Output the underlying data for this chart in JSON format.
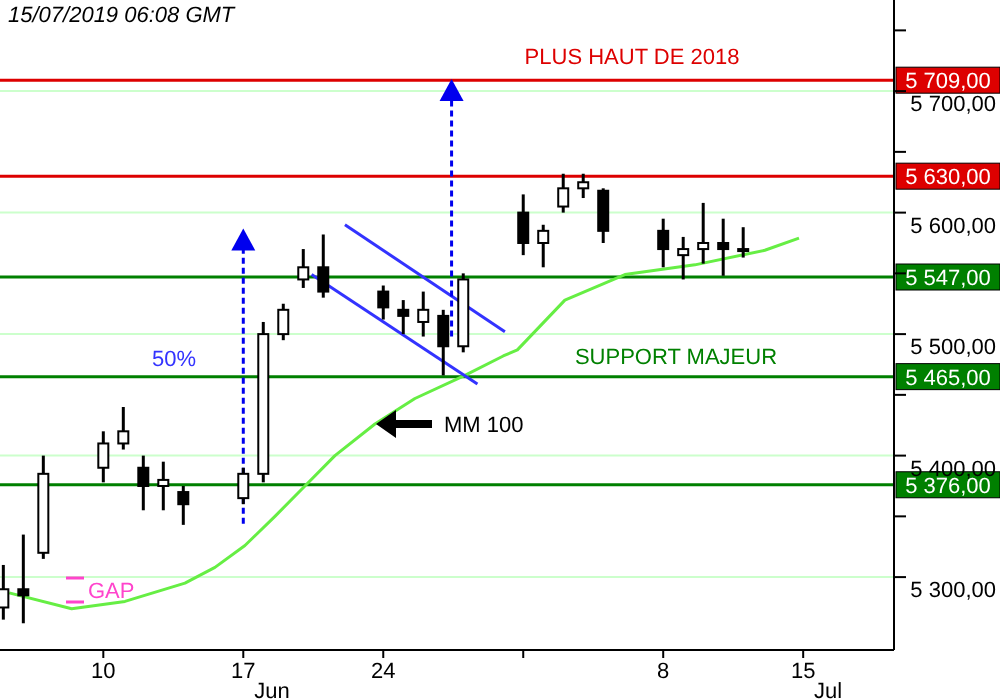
{
  "chart_data": {
    "type": "candlestick",
    "color": "#000000",
    "x": [
      "2019-06-05",
      "2019-06-06",
      "2019-06-07",
      "2019-06-10",
      "2019-06-11",
      "2019-06-12",
      "2019-06-13",
      "2019-06-14",
      "2019-06-17",
      "2019-06-18",
      "2019-06-19",
      "2019-06-20",
      "2019-06-21",
      "2019-06-24",
      "2019-06-25",
      "2019-06-26",
      "2019-06-27",
      "2019-06-28",
      "2019-07-01",
      "2019-07-02",
      "2019-07-03",
      "2019-07-04",
      "2019-07-05",
      "2019-07-08",
      "2019-07-09",
      "2019-07-10",
      "2019-07-11",
      "2019-07-12"
    ],
    "ohlc": [
      [
        5275,
        5310,
        5265,
        5290
      ],
      [
        5290,
        5335,
        5262,
        5285
      ],
      [
        5320,
        5400,
        5315,
        5385
      ],
      [
        5390,
        5420,
        5378,
        5410
      ],
      [
        5410,
        5440,
        5405,
        5420
      ],
      [
        5390,
        5400,
        5355,
        5375
      ],
      [
        5375,
        5395,
        5355,
        5380
      ],
      [
        5370,
        5375,
        5343,
        5360
      ],
      [
        5365,
        5390,
        5360,
        5385
      ],
      [
        5385,
        5510,
        5378,
        5500
      ],
      [
        5500,
        5525,
        5495,
        5520
      ],
      [
        5545,
        5570,
        5538,
        5555
      ],
      [
        5555,
        5582,
        5530,
        5535
      ],
      [
        5535,
        5540,
        5512,
        5522
      ],
      [
        5520,
        5528,
        5500,
        5515
      ],
      [
        5510,
        5535,
        5498,
        5520
      ],
      [
        5515,
        5520,
        5466,
        5490
      ],
      [
        5490,
        5550,
        5485,
        5545
      ],
      [
        5600,
        5615,
        5565,
        5575
      ],
      [
        5575,
        5590,
        5555,
        5585
      ],
      [
        5605,
        5632,
        5600,
        5620
      ],
      [
        5620,
        5632,
        5612,
        5625
      ],
      [
        5618,
        5620,
        5575,
        5585
      ],
      [
        5585,
        5595,
        5555,
        5570
      ],
      [
        5565,
        5580,
        5545,
        5570
      ],
      [
        5570,
        5608,
        5558,
        5575
      ],
      [
        5575,
        5595,
        5548,
        5570
      ],
      [
        5570,
        5588,
        5563,
        5570
      ]
    ],
    "series": [
      {
        "type": "line",
        "color": "#66ee44",
        "x": [
          "2019-06-05T07:00",
          "2019-06-08T10:00",
          "2019-06-11T02:00",
          "2019-06-14T02:00",
          "2019-06-15T14:00",
          "2019-06-17T02:00",
          "2019-06-18T14:00",
          "2019-06-20T02:00",
          "2019-06-21T14:00",
          "2019-06-23T14:00",
          "2019-06-25T14:00",
          "2019-06-28T02:00",
          "2019-06-30T00:00",
          "2019-06-30T17:00",
          "2019-07-03T02:00",
          "2019-07-06T02:00",
          "2019-07-09T14:00",
          "2019-07-13T02:00",
          "2019-07-14T19:00"
        ],
        "values": [
          5287,
          5274,
          5280,
          5295,
          5308,
          5326,
          5350,
          5375,
          5400,
          5426,
          5447,
          5466,
          5482,
          5487,
          5528,
          5549,
          5557,
          5569,
          5579
        ]
      },
      {
        "type": "line",
        "color": "#3333ff",
        "x": [
          "2019-06-22T02:00",
          "2019-06-30T02:00"
        ],
        "values": [
          5590,
          5502
        ]
      },
      {
        "type": "line",
        "color": "#3333ff",
        "x": [
          "2019-06-20T10:00",
          "2019-06-28T17:00"
        ],
        "values": [
          5549,
          5459
        ]
      },
      {
        "type": "line",
        "color": "#0000ee",
        "line_style": "dotted",
        "marker": "triangle",
        "x": [
          "2019-06-17",
          "2019-06-17"
        ],
        "values": [
          5344,
          5577
        ]
      },
      {
        "type": "line",
        "color": "#0000ee",
        "line_style": "dotted",
        "marker": "triangle",
        "x": [
          "2019-06-27T10:00",
          "2019-06-27T10:00"
        ],
        "values": [
          5498,
          5700
        ]
      }
    ],
    "xlim": [
      "2019-06-04T20:00",
      "2019-07-19T13:00"
    ],
    "xticks": [
      {
        "value": "2019-06-10",
        "label": "10"
      },
      {
        "value": "2019-06-17",
        "label": "17"
      },
      {
        "value": "2019-06-24",
        "label": "24"
      },
      {
        "value": "2019-07-01",
        "label": null
      },
      {
        "value": "2019-07-08",
        "label": "8"
      },
      {
        "value": "2019-07-15",
        "label": "15"
      }
    ],
    "ylim": [
      5240,
      5775
    ],
    "yticks": [
      {
        "value": 5300,
        "label": "5 300,00"
      },
      {
        "value": 5350,
        "label": null
      },
      {
        "value": 5400,
        "label": "5 400,00"
      },
      {
        "value": 5450,
        "label": null
      },
      {
        "value": 5500,
        "label": "5 500,00"
      },
      {
        "value": 5550,
        "label": null
      },
      {
        "value": 5600,
        "label": "5 600,00"
      },
      {
        "value": 5650,
        "label": null
      },
      {
        "value": 5700,
        "label": "5 700,00"
      },
      {
        "value": 5750,
        "label": null
      }
    ],
    "grid": "y",
    "ref_lines": [
      {
        "axis": "y",
        "value": 5709,
        "label": "5 709,00",
        "color": "#dd0000"
      },
      {
        "axis": "y",
        "value": 5630,
        "label": "5 630,00",
        "color": "#dd0000"
      },
      {
        "axis": "y",
        "value": 5547,
        "label": "5 547,00",
        "color": "#008000"
      },
      {
        "axis": "y",
        "value": 5465,
        "label": "5 465,00",
        "color": "#008000"
      },
      {
        "axis": "y",
        "value": 5376,
        "label": "5 376,00",
        "color": "#008000"
      }
    ],
    "annotations": [
      "15/07/2019 06:08 GMT",
      "PLUS HAUT DE 2018",
      "SUPPORT MAJEUR",
      "50%",
      "MM 100",
      "GAP",
      "Jun",
      "Jul"
    ]
  }
}
